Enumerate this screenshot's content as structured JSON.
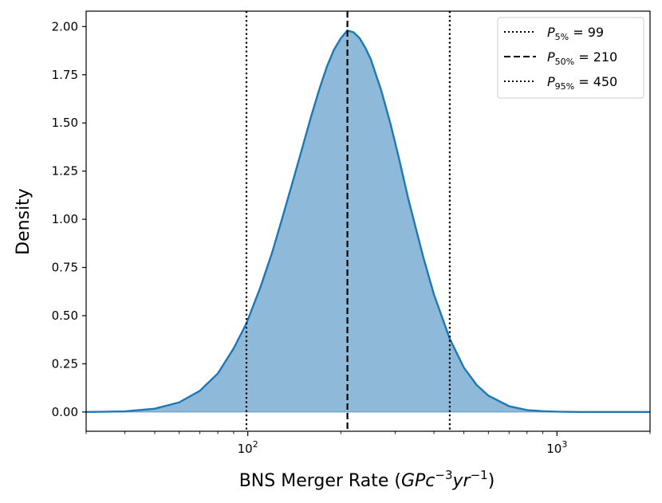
{
  "chart_data": {
    "type": "area",
    "title": "",
    "xlabel": {
      "prefix": "BNS Merger Rate (",
      "unit_base_1": "GPc",
      "unit_exp_1": "−3",
      "unit_base_2": "yr",
      "unit_exp_2": "−1",
      "suffix": ")"
    },
    "ylabel": "Density",
    "xscale": "log",
    "xlim": [
      30,
      2000
    ],
    "ylim": [
      -0.1,
      2.08
    ],
    "grid": false,
    "legend_position": "top-right",
    "x_ticks": [
      {
        "value": 100,
        "base": "10",
        "exp": "2"
      },
      {
        "value": 1000,
        "base": "10",
        "exp": "3"
      }
    ],
    "y_ticks": [
      {
        "value": 0.0,
        "label": "0.00"
      },
      {
        "value": 0.25,
        "label": "0.25"
      },
      {
        "value": 0.5,
        "label": "0.50"
      },
      {
        "value": 0.75,
        "label": "0.75"
      },
      {
        "value": 1.0,
        "label": "1.00"
      },
      {
        "value": 1.25,
        "label": "1.25"
      },
      {
        "value": 1.5,
        "label": "1.50"
      },
      {
        "value": 1.75,
        "label": "1.75"
      },
      {
        "value": 2.0,
        "label": "2.00"
      }
    ],
    "series": [
      {
        "color": "#1f77b4",
        "fill_color": "#8fb9d9",
        "x": [
          30,
          40,
          50,
          60,
          70,
          80,
          90,
          99,
          110,
          120,
          130,
          140,
          150,
          160,
          170,
          180,
          190,
          200,
          210,
          220,
          230,
          240,
          250,
          270,
          290,
          310,
          330,
          350,
          370,
          400,
          450,
          500,
          550,
          600,
          700,
          800,
          900,
          1000,
          1200,
          1500,
          2000
        ],
        "y": [
          0.0,
          0.003,
          0.017,
          0.05,
          0.11,
          0.2,
          0.33,
          0.46,
          0.65,
          0.83,
          1.02,
          1.2,
          1.37,
          1.53,
          1.67,
          1.79,
          1.88,
          1.94,
          1.98,
          1.97,
          1.94,
          1.89,
          1.83,
          1.67,
          1.49,
          1.3,
          1.11,
          0.95,
          0.8,
          0.61,
          0.38,
          0.23,
          0.14,
          0.085,
          0.03,
          0.01,
          0.004,
          0.0015,
          0.0002,
          0.0,
          0.0
        ]
      }
    ],
    "percentiles": [
      {
        "value": 99,
        "label_base": "P",
        "label_sub": "5%",
        "label_value": "= 99",
        "style": "dotted"
      },
      {
        "value": 210,
        "label_base": "P",
        "label_sub": "50%",
        "label_value": "= 210",
        "style": "dashed"
      },
      {
        "value": 450,
        "label_base": "P",
        "label_sub": "95%",
        "label_value": "= 450",
        "style": "dotted"
      }
    ]
  }
}
